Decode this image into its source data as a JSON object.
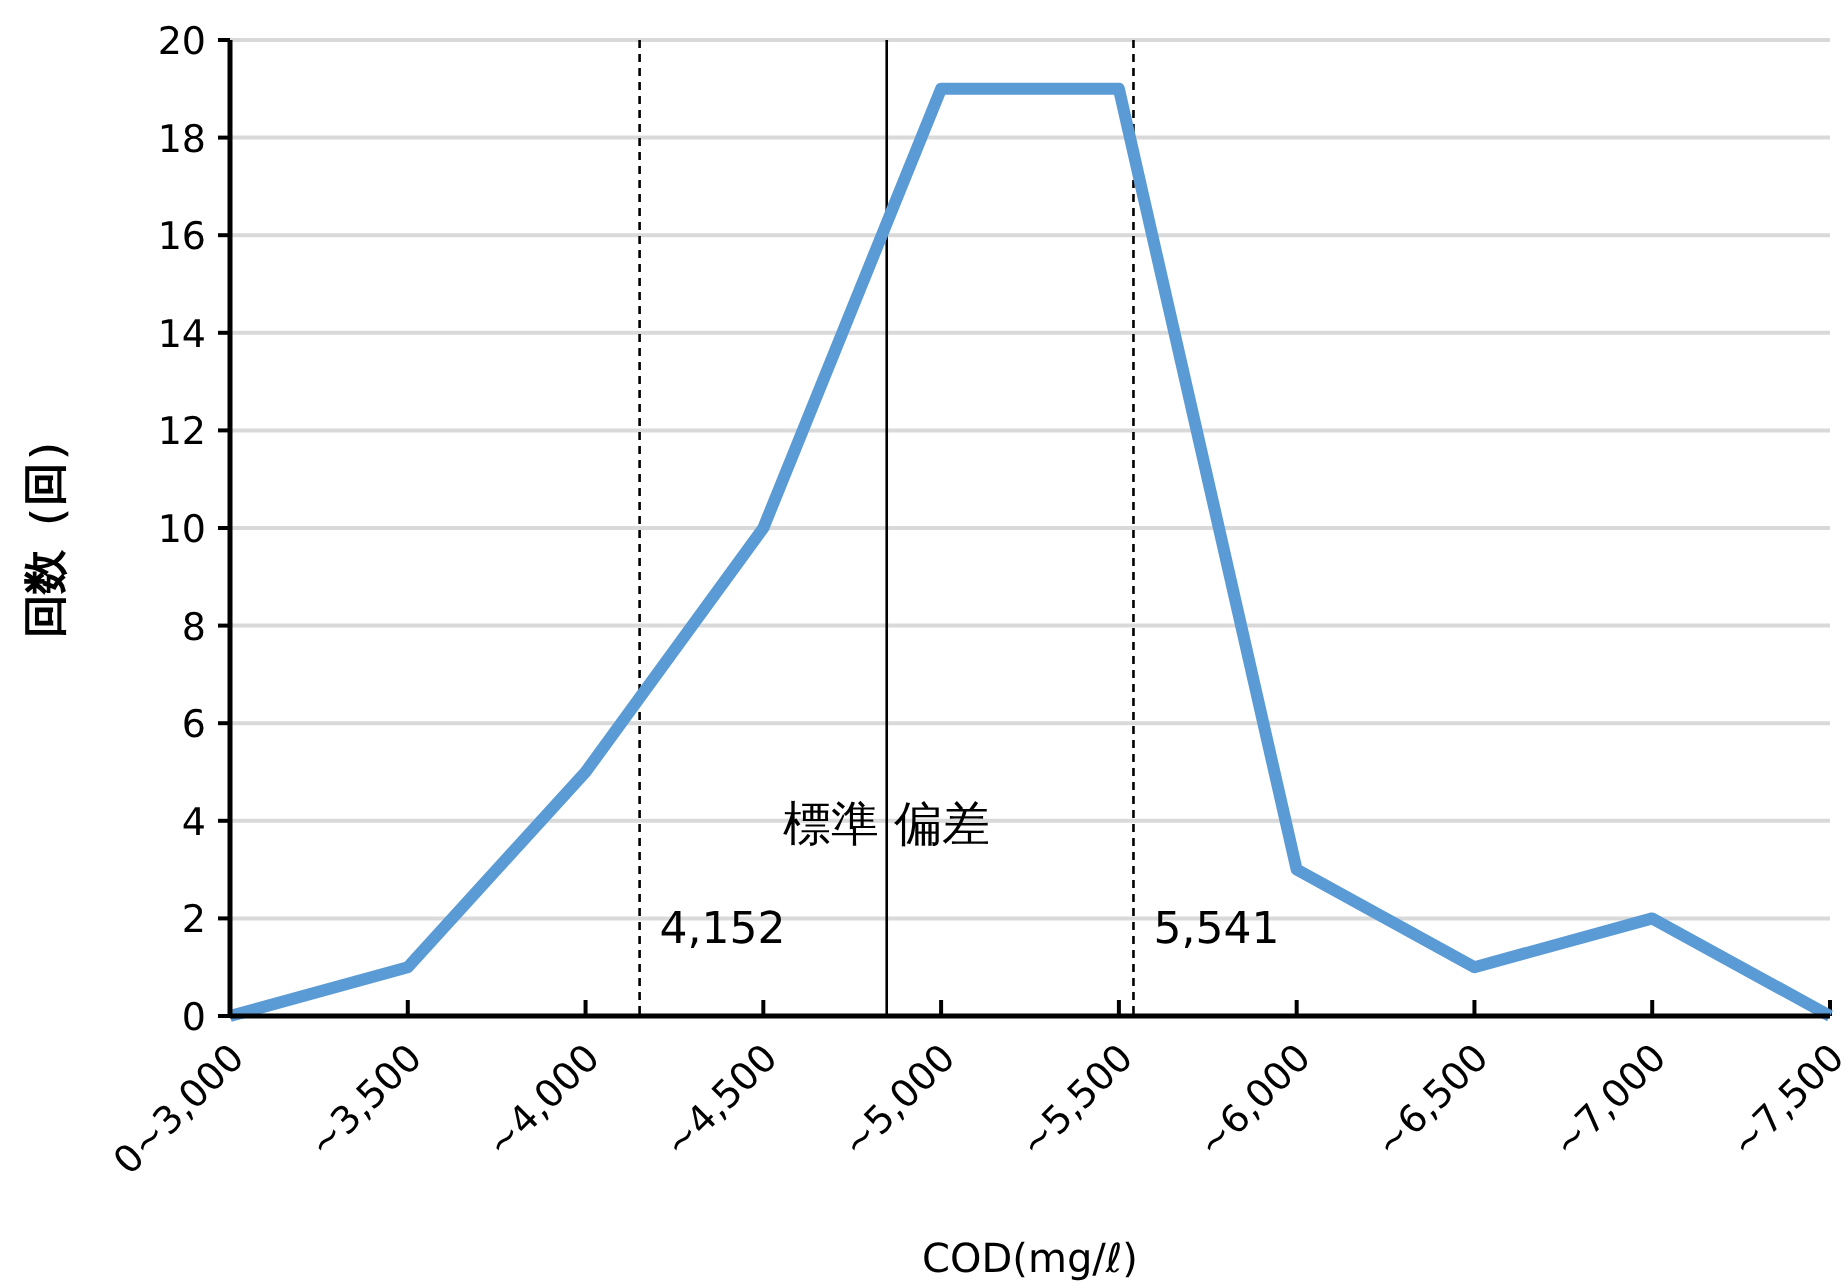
{
  "chart_data": {
    "type": "line",
    "xlabel": "COD(mg/ℓ)",
    "ylabel": "回数（回）",
    "x": [
      3000,
      3500,
      4000,
      4500,
      5000,
      5500,
      6000,
      6500,
      7000,
      7500
    ],
    "series": [
      {
        "color": "#5b9bd5",
        "values": [
          0,
          1,
          5,
          10,
          19,
          19,
          3,
          1,
          2,
          0
        ]
      }
    ],
    "xlim": [
      3000,
      7500
    ],
    "xticks": [
      {
        "value": 3000,
        "label": "0~3,000"
      },
      {
        "value": 3500,
        "label": "~3,500"
      },
      {
        "value": 4000,
        "label": "~4,000"
      },
      {
        "value": 4500,
        "label": "~4,500"
      },
      {
        "value": 5000,
        "label": "~5,000"
      },
      {
        "value": 5500,
        "label": "~5,500"
      },
      {
        "value": 6000,
        "label": "~6,000"
      },
      {
        "value": 6500,
        "label": "~6,500"
      },
      {
        "value": 7000,
        "label": "~7,000"
      },
      {
        "value": 7500,
        "label": "~7,500"
      }
    ],
    "ylim": [
      0,
      20
    ],
    "yticks": [
      0,
      2,
      4,
      6,
      8,
      10,
      12,
      14,
      16,
      18,
      20
    ],
    "grid": "y",
    "marker": "none",
    "line_style": "solid",
    "ref_lines": [
      {
        "axis": "x",
        "value": 4152,
        "label": "4,152",
        "line_style": "dashed",
        "color": "#000000"
      },
      {
        "axis": "x",
        "value": 4847,
        "line_style": "solid",
        "color": "#000000"
      },
      {
        "axis": "x",
        "value": 5541,
        "label": "5,541",
        "line_style": "dashed",
        "color": "#000000"
      }
    ],
    "annotations": [
      "標準 偏差"
    ]
  }
}
